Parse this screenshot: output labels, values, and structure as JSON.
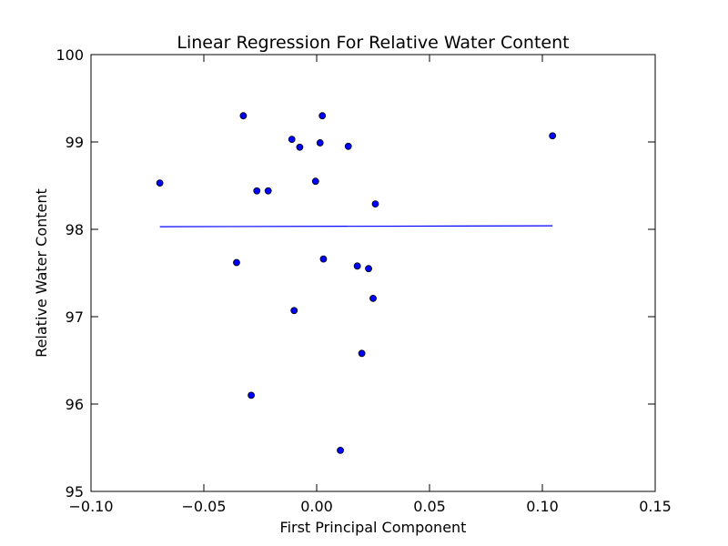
{
  "chart_data": {
    "type": "scatter",
    "title": "Linear Regression For Relative Water Content",
    "xlabel": "First Principal Component",
    "ylabel": "Relative Water Content",
    "xlim": [
      -0.1,
      0.15
    ],
    "ylim": [
      95,
      100
    ],
    "x_ticks": [
      -0.1,
      -0.05,
      0.0,
      0.05,
      0.1,
      0.15
    ],
    "x_tick_labels": [
      "−0.10",
      "−0.05",
      "0.00",
      "0.05",
      "0.10",
      "0.15"
    ],
    "y_ticks": [
      95,
      96,
      97,
      98,
      99,
      100
    ],
    "y_tick_labels": [
      "95",
      "96",
      "97",
      "98",
      "99",
      "100"
    ],
    "grid": false,
    "colors": {
      "points": "#0000ff",
      "point_edge": "#000000",
      "line": "#0000ff"
    },
    "points": [
      {
        "x": -0.0695,
        "y": 98.53
      },
      {
        "x": -0.0355,
        "y": 97.62
      },
      {
        "x": -0.0325,
        "y": 99.3
      },
      {
        "x": -0.029,
        "y": 96.1
      },
      {
        "x": -0.0265,
        "y": 98.44
      },
      {
        "x": -0.0215,
        "y": 98.44
      },
      {
        "x": -0.011,
        "y": 99.03
      },
      {
        "x": -0.01,
        "y": 97.07
      },
      {
        "x": -0.0075,
        "y": 98.94
      },
      {
        "x": -0.0005,
        "y": 98.55
      },
      {
        "x": 0.0015,
        "y": 98.99
      },
      {
        "x": 0.0025,
        "y": 99.3
      },
      {
        "x": 0.003,
        "y": 97.66
      },
      {
        "x": 0.0105,
        "y": 95.47
      },
      {
        "x": 0.014,
        "y": 98.95
      },
      {
        "x": 0.018,
        "y": 97.58
      },
      {
        "x": 0.02,
        "y": 96.58
      },
      {
        "x": 0.023,
        "y": 97.55
      },
      {
        "x": 0.025,
        "y": 97.21
      },
      {
        "x": 0.026,
        "y": 98.29
      },
      {
        "x": 0.1045,
        "y": 99.07
      }
    ],
    "regression_line": {
      "x": [
        -0.0695,
        0.1045
      ],
      "y": [
        98.03,
        98.04
      ]
    }
  }
}
